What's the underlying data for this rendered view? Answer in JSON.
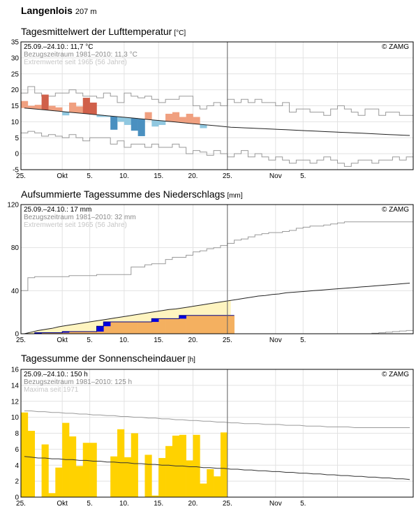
{
  "station": {
    "name": "Langenlois",
    "altitude": "207 m"
  },
  "x_tick_labels": [
    "25.",
    "Okt",
    "5.",
    "10.",
    "15.",
    "20.",
    "25.",
    "Nov",
    "5."
  ],
  "copyright": "© ZAMG",
  "colors": {
    "warm": "#f0a080",
    "hot": "#d0604a",
    "cool": "#90c8e0",
    "cold": "#4a90c0",
    "rain_pale": "#fef4c0",
    "rain_orange": "#f4b060",
    "rain_blue": "#0000e0",
    "sun": "#ffd200"
  },
  "chart_data": [
    {
      "type": "bar",
      "title": "Tagesmittelwert der Lufttemperatur",
      "unit": "[°C]",
      "info": [
        "25.09.–24.10.: 11,7 °C",
        "Bezugszeitraum 1981–2010: 11,3 °C",
        "Extremwerte seit 1965 (56 Jahre)"
      ],
      "ylim": [
        -5,
        35
      ],
      "yticks": [
        -5,
        0,
        5,
        10,
        15,
        20,
        25,
        30,
        35
      ],
      "days": 57,
      "daily_mean": [
        16.5,
        15,
        15.3,
        18.5,
        15,
        14.5,
        12,
        16,
        14.8,
        17.5,
        16,
        11.5,
        11.5,
        7.5,
        10,
        9,
        7.2,
        5.5,
        13,
        8.5,
        9,
        12.5,
        13,
        11.5,
        12.5,
        11.5,
        8
      ],
      "normal": [
        14.3,
        14.1,
        13.9,
        13.7,
        13.5,
        13.3,
        13.1,
        12.9,
        12.7,
        12.5,
        12.3,
        12.1,
        11.9,
        11.7,
        11.5,
        11.3,
        11.1,
        10.9,
        10.7,
        10.5,
        10.3,
        10.1,
        9.9,
        9.7,
        9.5,
        9.3,
        9.1,
        8.9,
        8.7,
        8.5,
        8.3,
        8.2,
        8.1,
        8.0,
        7.9,
        7.8,
        7.7,
        7.6,
        7.5,
        7.4,
        7.3,
        7.2,
        7.1,
        7.0,
        6.9,
        6.8,
        6.7,
        6.6,
        6.5,
        6.4,
        6.3,
        6.2,
        6.1,
        6.0,
        5.9,
        5.8,
        5.7
      ],
      "max_line": [
        19,
        21,
        19,
        18,
        18,
        19,
        19,
        20,
        19,
        18,
        18,
        17.5,
        19,
        18,
        16,
        19,
        18,
        17.5,
        18,
        17,
        16,
        17,
        17,
        18,
        18,
        15,
        14,
        15,
        16,
        15,
        17,
        16,
        17,
        16,
        17,
        16,
        16,
        15,
        16,
        13,
        14,
        14,
        13,
        13,
        12,
        14,
        15,
        14,
        13,
        12,
        14,
        14,
        12,
        13,
        13,
        12,
        12
      ],
      "min_line": [
        6.5,
        7,
        6.5,
        5.5,
        6,
        5.5,
        5,
        6,
        5,
        4,
        5,
        5,
        5,
        3,
        4,
        2,
        3,
        3,
        2,
        3,
        2,
        2,
        3,
        2,
        0,
        1,
        0.5,
        -0.5,
        1,
        0,
        -1,
        0,
        1,
        -1,
        0,
        -1,
        -2,
        -1,
        -2,
        -3,
        -2,
        -2,
        -3,
        -2,
        -1,
        -2,
        -3,
        -4,
        -3,
        -2,
        -2,
        -3,
        -2,
        -2,
        -1,
        -2,
        -1
      ]
    },
    {
      "type": "area",
      "title": "Aufsummierte Tagessumme des Niederschlags",
      "unit": "[mm]",
      "info": [
        "25.09.–24.10.: 17 mm",
        "Bezugszeitraum 1981–2010: 32 mm",
        "Extremwerte seit 1965 (56 Jahre)"
      ],
      "ylim": [
        0,
        120
      ],
      "yticks": [
        0,
        40,
        80,
        120
      ],
      "days": 57,
      "cumulative": [
        0,
        0,
        1,
        1,
        1,
        1,
        2,
        2,
        2,
        2,
        2,
        7,
        11,
        11,
        11,
        11,
        11,
        11,
        11,
        14,
        14,
        14,
        14,
        17,
        17,
        17,
        17,
        17,
        17,
        17,
        17
      ],
      "normal_cumulative": [
        0,
        1.5,
        3,
        4,
        5,
        6.5,
        7.5,
        8.5,
        9.5,
        10.5,
        11.5,
        12.5,
        13.5,
        14.5,
        15.5,
        16.5,
        17.5,
        18.5,
        19.5,
        20.5,
        21.5,
        22.5,
        23,
        24,
        25,
        26,
        27,
        28,
        29,
        30,
        31,
        32,
        33,
        34,
        35,
        35.5,
        36.5,
        37,
        38,
        38.5,
        39,
        39.5,
        40,
        40.5,
        41,
        41.5,
        42,
        42.5,
        43,
        43.5,
        44,
        44.5,
        45,
        45.5,
        46,
        46.5,
        47
      ],
      "max_cumulative": [
        40,
        52,
        53,
        53,
        53,
        53,
        53,
        54,
        54,
        54,
        54,
        55,
        55,
        55,
        55,
        55,
        62,
        62,
        64,
        65,
        65,
        69,
        71,
        71,
        73,
        76,
        77,
        79,
        80,
        82,
        84,
        87,
        88,
        90,
        92,
        93,
        94,
        94,
        95,
        96,
        98,
        99,
        100,
        100,
        101,
        102,
        103,
        104,
        104,
        104,
        104,
        104,
        104,
        104,
        104,
        104,
        104
      ],
      "min_cumulative": [
        0,
        0,
        0,
        0,
        0,
        0,
        0,
        0,
        0,
        0,
        0,
        0,
        0,
        0,
        0,
        0,
        0,
        0,
        0,
        0,
        0,
        0,
        0,
        0,
        0,
        0,
        0,
        0,
        0,
        0,
        0,
        0,
        0,
        0,
        0,
        0,
        0,
        0,
        0,
        0,
        0,
        0,
        0,
        0,
        0,
        0,
        0,
        0,
        0,
        0,
        0,
        0.5,
        1,
        1.5,
        2,
        2.5,
        3
      ]
    },
    {
      "type": "bar",
      "title": "Tagessumme der Sonnenscheindauer",
      "unit": "[h]",
      "info": [
        "25.09.–24.10.: 150 h",
        "Bezugszeitraum 1981–2010: 125 h",
        "Maxima seit 1971"
      ],
      "ylim": [
        0,
        16
      ],
      "yticks": [
        0,
        2,
        4,
        6,
        8,
        10,
        12,
        14,
        16
      ],
      "days": 57,
      "daily_hours": [
        10.6,
        8.3,
        0,
        6.6,
        0.5,
        3.7,
        9.3,
        7.6,
        3.9,
        6.8,
        6.8,
        0,
        0,
        5.1,
        8.5,
        5,
        8,
        0,
        5.3,
        0.2,
        4.9,
        6.4,
        7.7,
        7.8,
        4.6,
        7.8,
        1.7,
        3.5,
        2.6,
        8.1
      ],
      "normal": [
        5.1,
        5.0,
        4.9,
        4.9,
        4.8,
        4.8,
        4.7,
        4.7,
        4.6,
        4.6,
        4.5,
        4.5,
        4.4,
        4.4,
        4.3,
        4.3,
        4.2,
        4.2,
        4.1,
        4.1,
        4.0,
        4.0,
        3.9,
        3.9,
        3.8,
        3.8,
        3.7,
        3.7,
        3.6,
        3.6,
        3.5,
        3.5,
        3.4,
        3.4,
        3.3,
        3.3,
        3.2,
        3.2,
        3.1,
        3.1,
        3.0,
        3.0,
        2.9,
        2.9,
        2.8,
        2.8,
        2.7,
        2.7,
        2.6,
        2.6,
        2.5,
        2.5,
        2.4,
        2.4,
        2.3,
        2.3,
        2.2
      ],
      "maxima": [
        10.8,
        10.8,
        10.7,
        10.7,
        10.6,
        10.6,
        10.5,
        10.5,
        10.4,
        10.4,
        10.3,
        10.3,
        10.2,
        10.2,
        10.1,
        10.1,
        10.0,
        10.0,
        9.9,
        9.9,
        9.8,
        9.8,
        9.7,
        9.7,
        9.6,
        9.6,
        9.5,
        9.5,
        9.4,
        9.4,
        9.3,
        9.3,
        9.2,
        9.2,
        9.2,
        9.1,
        9.1,
        9.1,
        9.0,
        9.0,
        9.0,
        8.9,
        8.9,
        8.9,
        8.8,
        8.8,
        8.8,
        8.8,
        8.7,
        8.7,
        8.7,
        8.7,
        8.7,
        8.7,
        8.7,
        8.7,
        8.7
      ]
    }
  ]
}
